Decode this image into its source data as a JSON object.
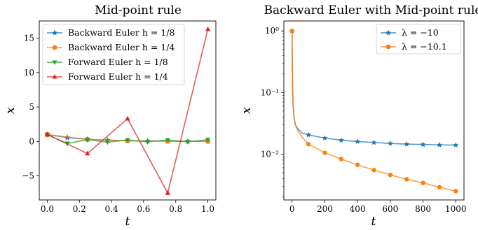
{
  "chart_data": [
    {
      "type": "line",
      "title": "Mid-point rule",
      "xlabel": "t",
      "ylabel": "x",
      "xlim": [
        -0.05,
        1.05
      ],
      "ylim": [
        -8.5,
        17.5
      ],
      "yscale": "linear",
      "xticks": [
        "0.0",
        "0.2",
        "0.4",
        "0.6",
        "0.8",
        "1.0"
      ],
      "xtick_values": [
        0,
        0.2,
        0.4,
        0.6,
        0.8,
        1.0
      ],
      "yticks": [
        "−5",
        "0",
        "5",
        "10",
        "15"
      ],
      "ytick_values": [
        -5,
        0,
        5,
        10,
        15
      ],
      "legend_position": "top-left",
      "series": [
        {
          "name": "Backward Euler h = 1/8",
          "color": "#1f77b4",
          "marker": "star",
          "x": [
            0,
            0.125,
            0.25,
            0.375,
            0.5,
            0.625,
            0.75,
            0.875,
            1.0
          ],
          "y": [
            1.0,
            0.55,
            0.3,
            0.17,
            0.1,
            0.05,
            0.03,
            0.02,
            0.01
          ]
        },
        {
          "name": "Backward Euler h = 1/4",
          "color": "#ff7f0e",
          "marker": "circle",
          "x": [
            0,
            0.25,
            0.5,
            0.75,
            1.0
          ],
          "y": [
            1.0,
            0.3,
            0.1,
            0.03,
            0.01
          ]
        },
        {
          "name": "Forward Euler h = 1/8",
          "color": "#2ca02c",
          "marker": "triangle-down",
          "x": [
            0,
            0.125,
            0.25,
            0.375,
            0.5,
            0.625,
            0.75,
            0.875,
            1.0
          ],
          "y": [
            1.0,
            -0.3,
            0.25,
            -0.1,
            0.2,
            -0.05,
            0.2,
            -0.05,
            0.25
          ]
        },
        {
          "name": "Forward Euler h = 1/4",
          "color": "#d62728",
          "marker": "triangle-up",
          "x": [
            0,
            0.25,
            0.5,
            0.75,
            1.0
          ],
          "y": [
            1.0,
            -1.75,
            3.3,
            -7.5,
            16.3
          ]
        }
      ]
    },
    {
      "type": "line",
      "title": "Backward Euler with Mid-point rule",
      "xlabel": "t",
      "ylabel": "x",
      "xlim": [
        -50,
        1050
      ],
      "ylim": [
        0.0018,
        1.45
      ],
      "yscale": "log",
      "xticks": [
        "0",
        "200",
        "400",
        "600",
        "800",
        "1000"
      ],
      "xtick_values": [
        0,
        200,
        400,
        600,
        800,
        1000
      ],
      "yticks": [
        "10⁻²",
        "10⁻¹",
        "10⁰"
      ],
      "ytick_values": [
        0.01,
        0.1,
        1
      ],
      "legend_position": "top-right",
      "series": [
        {
          "name": "λ = −10",
          "color": "#1f77b4",
          "marker": "star",
          "x": [
            0,
            1,
            2,
            4,
            7,
            12,
            20,
            35,
            60,
            100,
            200,
            300,
            400,
            500,
            600,
            700,
            800,
            900,
            1000
          ],
          "y": [
            1.0,
            0.5,
            0.25,
            0.1,
            0.06,
            0.04,
            0.03,
            0.026,
            0.022,
            0.0205,
            0.0182,
            0.0168,
            0.016,
            0.0154,
            0.0149,
            0.0145,
            0.0143,
            0.0141,
            0.014
          ]
        },
        {
          "name": "λ = −10.1",
          "color": "#ff7f0e",
          "marker": "circle",
          "x": [
            0,
            1,
            2,
            4,
            7,
            12,
            20,
            35,
            60,
            100,
            200,
            300,
            400,
            500,
            600,
            700,
            800,
            900,
            1000
          ],
          "y": [
            1.0,
            0.5,
            0.25,
            0.1,
            0.06,
            0.04,
            0.03,
            0.024,
            0.019,
            0.0145,
            0.0105,
            0.0083,
            0.0067,
            0.0055,
            0.0046,
            0.0039,
            0.0034,
            0.0029,
            0.0025
          ]
        }
      ]
    }
  ]
}
